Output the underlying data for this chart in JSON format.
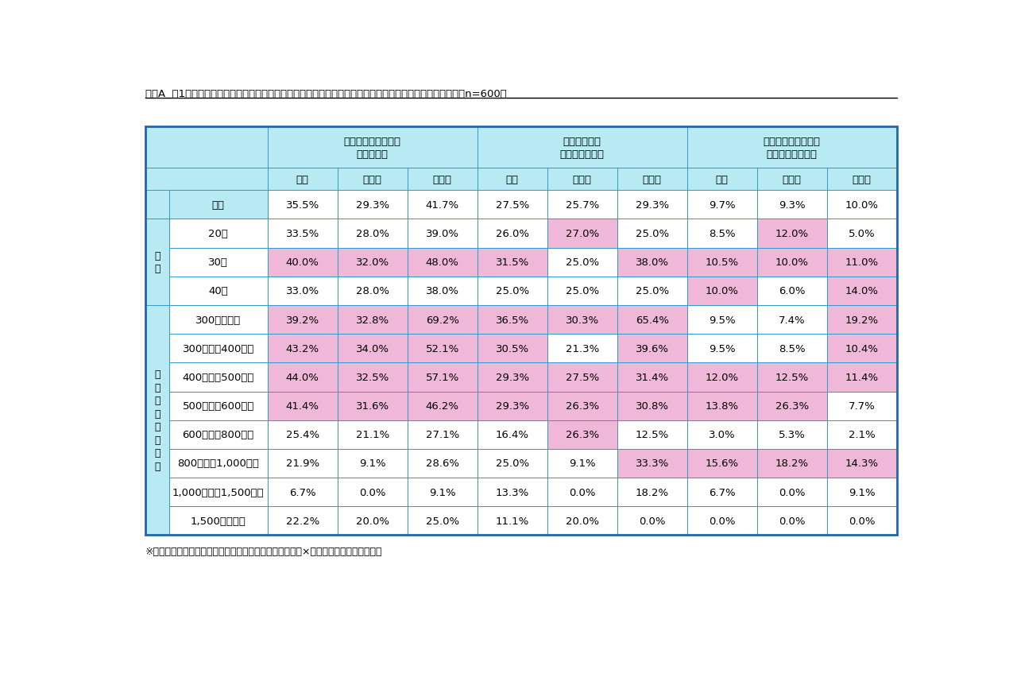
{
  "title": "図表A  第1回「離婚したくなる夫・妻の仕事」調査／パートナーの仕事に対する満足度　　世代・年収別　（n=600）",
  "footnote": "※背景色付きは、不満・転職・離婚の各項目における全体×全体の回答率を超える数値",
  "col_groups": [
    "パートナーの仕事に\n不満がある",
    "パートナーに\n転職して欲しい",
    "パートナーの仕事が\n原因で離婚したい"
  ],
  "sub_cols": [
    "全体",
    "夫回答",
    "妻回答"
  ],
  "row_labels_left": [
    [
      "",
      "全体"
    ],
    [
      "世\n代",
      "20代"
    ],
    [
      "",
      "30代"
    ],
    [
      "",
      "40代"
    ],
    [
      "パ\nー\nト\nナ\nー\nの\n年\n収",
      "300万円未満"
    ],
    [
      "",
      "300万円～400万円"
    ],
    [
      "",
      "400万円～500万円"
    ],
    [
      "",
      "500万円～600万円"
    ],
    [
      "",
      "600万円～800万円"
    ],
    [
      "",
      "800万円～1,000万円"
    ],
    [
      "",
      "1,000万円～1,500万円"
    ],
    [
      "",
      "1,500万円以上"
    ]
  ],
  "data": [
    [
      "35.5%",
      "29.3%",
      "41.7%",
      "27.5%",
      "25.7%",
      "29.3%",
      "9.7%",
      "9.3%",
      "10.0%"
    ],
    [
      "33.5%",
      "28.0%",
      "39.0%",
      "26.0%",
      "27.0%",
      "25.0%",
      "8.5%",
      "12.0%",
      "5.0%"
    ],
    [
      "40.0%",
      "32.0%",
      "48.0%",
      "31.5%",
      "25.0%",
      "38.0%",
      "10.5%",
      "10.0%",
      "11.0%"
    ],
    [
      "33.0%",
      "28.0%",
      "38.0%",
      "25.0%",
      "25.0%",
      "25.0%",
      "10.0%",
      "6.0%",
      "14.0%"
    ],
    [
      "39.2%",
      "32.8%",
      "69.2%",
      "36.5%",
      "30.3%",
      "65.4%",
      "9.5%",
      "7.4%",
      "19.2%"
    ],
    [
      "43.2%",
      "34.0%",
      "52.1%",
      "30.5%",
      "21.3%",
      "39.6%",
      "9.5%",
      "8.5%",
      "10.4%"
    ],
    [
      "44.0%",
      "32.5%",
      "57.1%",
      "29.3%",
      "27.5%",
      "31.4%",
      "12.0%",
      "12.5%",
      "11.4%"
    ],
    [
      "41.4%",
      "31.6%",
      "46.2%",
      "29.3%",
      "26.3%",
      "30.8%",
      "13.8%",
      "26.3%",
      "7.7%"
    ],
    [
      "25.4%",
      "21.1%",
      "27.1%",
      "16.4%",
      "26.3%",
      "12.5%",
      "3.0%",
      "5.3%",
      "2.1%"
    ],
    [
      "21.9%",
      "9.1%",
      "28.6%",
      "25.0%",
      "9.1%",
      "33.3%",
      "15.6%",
      "18.2%",
      "14.3%"
    ],
    [
      "6.7%",
      "0.0%",
      "9.1%",
      "13.3%",
      "0.0%",
      "18.2%",
      "6.7%",
      "0.0%",
      "9.1%"
    ],
    [
      "22.2%",
      "20.0%",
      "25.0%",
      "11.1%",
      "20.0%",
      "0.0%",
      "0.0%",
      "0.0%",
      "0.0%"
    ]
  ],
  "thresh": [
    35.5,
    29.3,
    41.7,
    27.5,
    25.7,
    29.3,
    9.7,
    9.3,
    10.0
  ],
  "bg_cyan": "#b8eaf4",
  "bg_pink": "#f0b8d8",
  "bg_white": "#ffffff",
  "border_color": "#3399cc",
  "border_color_outer": "#2266aa"
}
